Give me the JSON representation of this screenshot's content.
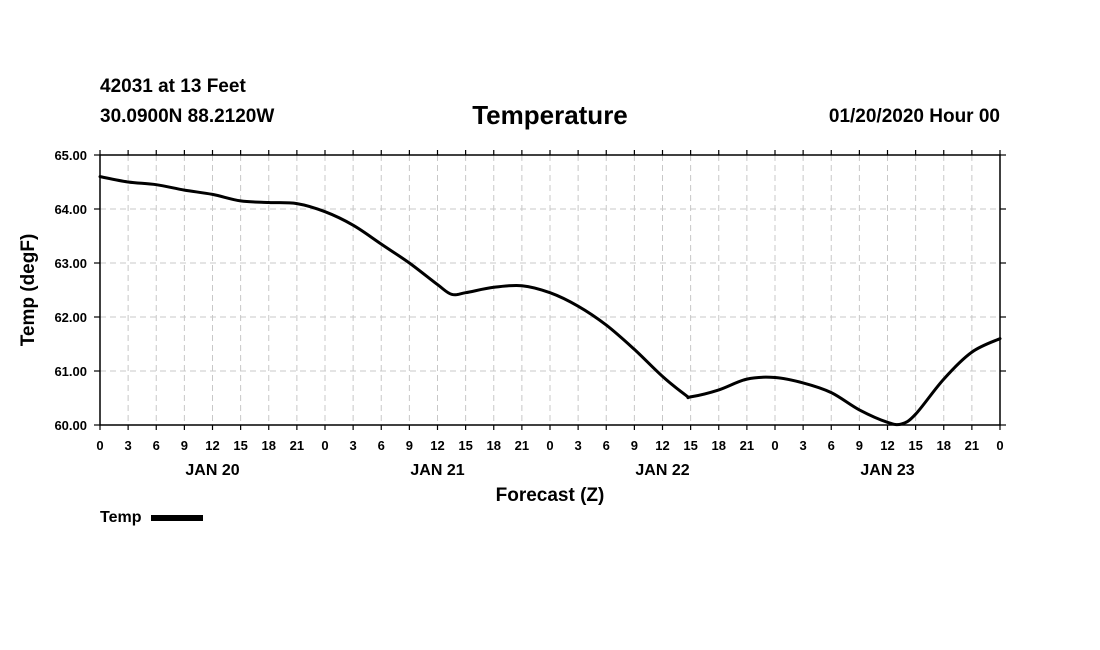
{
  "header": {
    "station": "42031 at 13 Feet",
    "coords": "30.0900N 88.2120W",
    "title": "Temperature",
    "timestamp": "01/20/2020 Hour 00"
  },
  "legend": {
    "label": "Temp"
  },
  "chart_data": {
    "type": "line",
    "title": "Temperature",
    "xlabel": "Forecast (Z)",
    "ylabel": "Temp (degF)",
    "ylim": [
      60,
      65
    ],
    "yticks": [
      "60.00",
      "61.00",
      "62.00",
      "63.00",
      "64.00",
      "65.00"
    ],
    "xlim_hours": [
      0,
      96
    ],
    "x_tick_labels": [
      "0",
      "3",
      "6",
      "9",
      "12",
      "15",
      "18",
      "21",
      "0",
      "3",
      "6",
      "9",
      "12",
      "15",
      "18",
      "21",
      "0",
      "3",
      "6",
      "9",
      "12",
      "15",
      "18",
      "21",
      "0",
      "3",
      "6",
      "9",
      "12",
      "15",
      "18",
      "21",
      "0"
    ],
    "day_labels": [
      "JAN 20",
      "JAN 21",
      "JAN 22",
      "JAN 23"
    ],
    "grid": true,
    "line_color": "#000000",
    "series": [
      {
        "name": "Temp",
        "x": [
          0,
          3,
          6,
          9,
          12,
          15,
          18,
          21,
          24,
          27,
          30,
          33,
          36,
          37.5,
          39,
          42,
          45,
          48,
          51,
          54,
          57,
          60,
          62.5,
          63,
          66,
          69,
          72,
          75,
          78,
          81,
          84,
          85.5,
          87,
          90,
          93,
          96
        ],
        "values": [
          64.6,
          64.5,
          64.45,
          64.35,
          64.27,
          64.15,
          64.12,
          64.1,
          63.95,
          63.7,
          63.35,
          63.0,
          62.6,
          62.42,
          62.45,
          62.55,
          62.58,
          62.45,
          62.2,
          61.85,
          61.4,
          60.9,
          60.55,
          60.52,
          60.65,
          60.85,
          60.88,
          60.78,
          60.6,
          60.28,
          60.05,
          60.02,
          60.2,
          60.85,
          61.35,
          61.6
        ]
      }
    ]
  }
}
